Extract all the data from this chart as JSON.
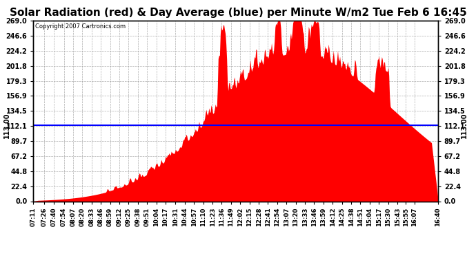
{
  "title": "Solar Radiation (red) & Day Average (blue) per Minute W/m2 Tue Feb 6 16:45",
  "copyright": "Copyright 2007 Cartronics.com",
  "day_average": 113.0,
  "y_min": 0.0,
  "y_max": 269.0,
  "yticks": [
    0.0,
    22.4,
    44.8,
    67.2,
    89.7,
    112.1,
    134.5,
    156.9,
    179.3,
    201.8,
    224.2,
    246.6,
    269.0
  ],
  "ytick_labels": [
    "0.0",
    "22.4",
    "44.8",
    "67.2",
    "89.7",
    "112.1",
    "134.5",
    "156.9",
    "179.3",
    "201.8",
    "224.2",
    "246.6",
    "269.0"
  ],
  "left_label": "113.00",
  "right_label": "113.00",
  "area_color": "#FF0000",
  "line_color": "#0000FF",
  "bg_color": "#FFFFFF",
  "plot_bg_color": "#FFFFFF",
  "grid_color": "#999999",
  "title_fontsize": 11,
  "xtick_labels": [
    "07:11",
    "07:26",
    "07:40",
    "07:54",
    "08:07",
    "08:20",
    "08:33",
    "08:46",
    "08:59",
    "09:12",
    "09:25",
    "09:38",
    "09:51",
    "10:04",
    "10:17",
    "10:31",
    "10:44",
    "10:57",
    "11:10",
    "11:23",
    "11:36",
    "11:49",
    "12:02",
    "12:15",
    "12:28",
    "12:41",
    "12:54",
    "13:07",
    "13:20",
    "13:33",
    "13:46",
    "13:59",
    "14:12",
    "14:25",
    "14:38",
    "14:51",
    "15:04",
    "15:17",
    "15:30",
    "15:43",
    "15:55",
    "16:07",
    "16:40"
  ]
}
